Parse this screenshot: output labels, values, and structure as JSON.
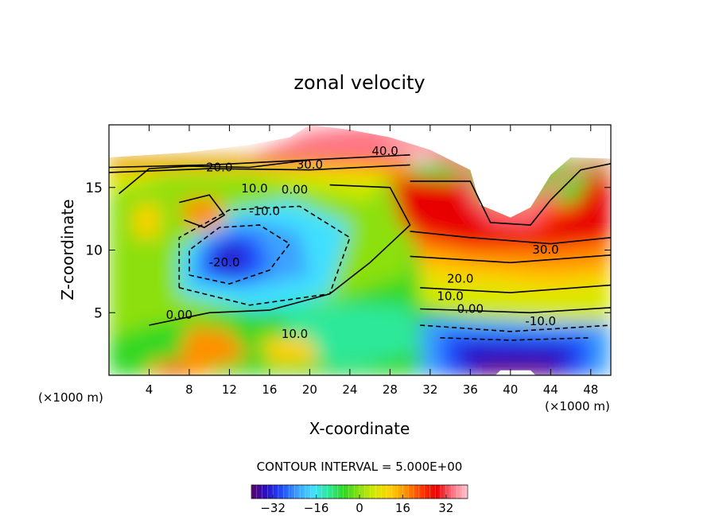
{
  "chart_data": {
    "type": "heatmap",
    "subtype": "filled-contour",
    "title": "zonal velocity",
    "xlabel": "X-coordinate",
    "ylabel": "Z-coordinate",
    "x_unit_note": "(×1000 m)",
    "x_unit_note_right": "(×1000 m)",
    "xlim": [
      0,
      50
    ],
    "ylim": [
      0,
      20
    ],
    "x_ticks": [
      4,
      8,
      12,
      16,
      20,
      24,
      28,
      32,
      36,
      40,
      44,
      48
    ],
    "y_ticks": [
      5,
      10,
      15
    ],
    "contour_interval_text": "CONTOUR INTERVAL = 5.000E+00",
    "contour_labels": [
      "40.0",
      "30.0",
      "20.0",
      "10.0",
      "0.00",
      "-10.0",
      "-20.0",
      "30.0",
      "20.0",
      "10.0",
      "0.00",
      "-10.0",
      "0.00",
      "10.0"
    ],
    "colorbar": {
      "range": [
        -40,
        40
      ],
      "ticks": [
        -32,
        -16,
        0,
        16,
        32
      ],
      "tick_labels": [
        "−32",
        "−16",
        "0",
        "16",
        "32"
      ],
      "colors": [
        "#5a006e",
        "#2a10c8",
        "#1e50ff",
        "#3ca0ff",
        "#40e0ff",
        "#2ee89a",
        "#30d820",
        "#8ce010",
        "#d8e800",
        "#ffd000",
        "#ff9000",
        "#ff3a00",
        "#e80000",
        "#ff7080",
        "#ffc8d0"
      ]
    },
    "features": [
      {
        "kind": "jet",
        "sign": "positive",
        "max": 40,
        "location": "upper right, x 30-50, z 10-17"
      },
      {
        "kind": "jet",
        "sign": "negative",
        "min": -35,
        "location": "lower right, x 32-48, z 0-4"
      },
      {
        "kind": "vortex",
        "sign": "negative",
        "min": -25,
        "location": "x 8-16, z 7-11"
      },
      {
        "kind": "vortex",
        "sign": "positive",
        "max": 30,
        "location": "x 5-8, z 0-1"
      }
    ]
  }
}
